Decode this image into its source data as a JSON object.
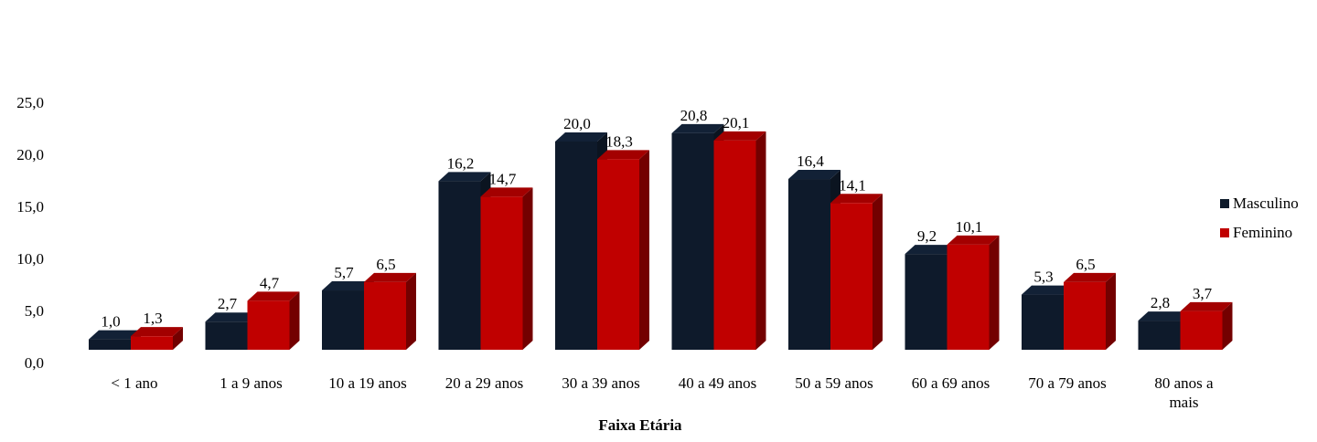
{
  "chart_data": {
    "type": "bar",
    "title": "",
    "xlabel": "Faixa Etária",
    "ylabel": "",
    "ylim": [
      0,
      25
    ],
    "yticks": [
      "0,0",
      "5,0",
      "10,0",
      "15,0",
      "20,0",
      "25,0"
    ],
    "categories": [
      "< 1 ano",
      "1 a 9 anos",
      "10 a 19 anos",
      "20 a 29 anos",
      "30 a 39 anos",
      "40 a 49 anos",
      "50 a 59 anos",
      "60 a 69 anos",
      "70 a 79 anos",
      "80 anos a mais"
    ],
    "category_lines": [
      [
        "< 1 ano"
      ],
      [
        "1 a 9 anos"
      ],
      [
        "10 a 19 anos"
      ],
      [
        "20 a 29 anos"
      ],
      [
        "30 a 39 anos"
      ],
      [
        "40 a 49 anos"
      ],
      [
        "50 a 59 anos"
      ],
      [
        "60 a 69 anos"
      ],
      [
        "70 a 79 anos"
      ],
      [
        "80 anos a",
        "mais"
      ]
    ],
    "series": [
      {
        "name": "Masculino",
        "color": "#0e1a2b",
        "values": [
          1.0,
          2.7,
          5.7,
          16.2,
          20.0,
          20.8,
          16.4,
          9.2,
          5.3,
          2.8
        ],
        "labels": [
          "1,0",
          "2,7",
          "5,7",
          "16,2",
          "20,0",
          "20,8",
          "16,4",
          "9,2",
          "5,3",
          "2,8"
        ]
      },
      {
        "name": "Feminino",
        "color": "#c00000",
        "values": [
          1.3,
          4.7,
          6.5,
          14.7,
          18.3,
          20.1,
          14.1,
          10.1,
          6.5,
          3.7
        ],
        "labels": [
          "1,3",
          "4,7",
          "6,5",
          "14,7",
          "18,3",
          "20,1",
          "14,1",
          "10,1",
          "6,5",
          "3,7"
        ]
      }
    ],
    "legend_position": "right",
    "style": "3d-clustered-column",
    "grid": false
  }
}
